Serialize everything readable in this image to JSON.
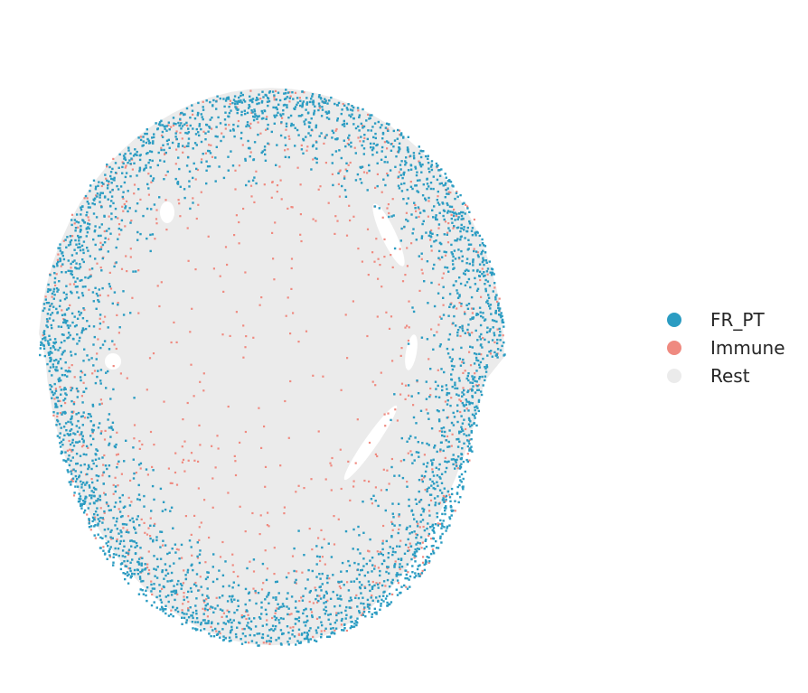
{
  "chart_data": {
    "type": "scatter",
    "title": "",
    "xlabel": "",
    "ylabel": "",
    "grid": false,
    "axes_visible": false,
    "legend_position": "right",
    "series": [
      {
        "name": "Rest",
        "color": "#ebebeb",
        "share": 0.8
      },
      {
        "name": "FR_PT",
        "color": "#2b9cc2",
        "share": 0.14,
        "distribution": "concentrated near tissue outer rim"
      },
      {
        "name": "Immune",
        "color": "#ef8a80",
        "share": 0.06,
        "distribution": "scattered throughout, denser in outer cortex"
      }
    ]
  },
  "legend": {
    "items": [
      {
        "label": "FR_PT",
        "color": "#2b9cc2"
      },
      {
        "label": "Immune",
        "color": "#ef8a80"
      },
      {
        "label": "Rest",
        "color": "#ebebeb"
      }
    ]
  }
}
